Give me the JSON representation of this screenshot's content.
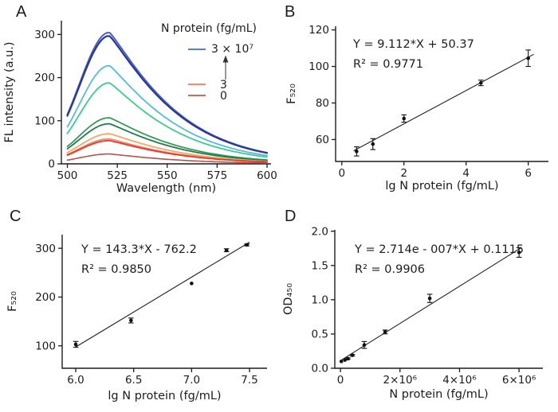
{
  "chart_data": [
    {
      "panel": "A",
      "type": "line",
      "subtype": "fluorescence-spectra",
      "xlabel": "Wavelength (nm)",
      "ylabel": "FL intensity (a.u.)",
      "xlim": [
        497,
        602
      ],
      "ylim": [
        0,
        332
      ],
      "xticks": [
        {
          "v": 500,
          "label": "500"
        },
        {
          "v": 525,
          "label": "525"
        },
        {
          "v": 550,
          "label": "550"
        },
        {
          "v": 575,
          "label": "575"
        },
        {
          "v": 600,
          "label": "600"
        }
      ],
      "yticks": [
        {
          "v": 0,
          "label": "0"
        },
        {
          "v": 100,
          "label": "100"
        },
        {
          "v": 200,
          "label": "200"
        },
        {
          "v": 300,
          "label": "300"
        }
      ],
      "peak_nm": 521,
      "curves": [
        {
          "peak": 305,
          "color": "#4a5fc1",
          "w": 2.0,
          "note": "3 × 10⁷ fg/mL"
        },
        {
          "peak": 297,
          "color": "#2b3a8c",
          "w": 2.2
        },
        {
          "peak": 228,
          "color": "#55bbd9",
          "w": 1.8
        },
        {
          "peak": 188,
          "color": "#41c98c",
          "w": 1.8
        },
        {
          "peak": 107,
          "color": "#379a58",
          "w": 1.8
        },
        {
          "peak": 93,
          "color": "#27794a",
          "w": 1.8
        },
        {
          "peak": 70,
          "color": "#f3a963",
          "w": 1.8
        },
        {
          "peak": 58,
          "color": "#ee8878",
          "w": 1.8
        },
        {
          "peak": 54,
          "color": "#e23a2a",
          "w": 1.8
        },
        {
          "peak": 23,
          "color": "#ad5450",
          "w": 1.6,
          "note": "0 fg/mL"
        }
      ],
      "legend": {
        "title": "N protein (fg/mL)",
        "entries": [
          {
            "label": "3 × 10⁷",
            "color": "#5b7fc4"
          },
          {
            "label": "3",
            "color": "#f0897a"
          },
          {
            "label": "0",
            "color": "#c96b6b"
          }
        ],
        "arrow": "up"
      }
    },
    {
      "panel": "B",
      "type": "scatter",
      "equation": "Y = 9.112*X + 50.37",
      "r_squared": "R² = 0.9771",
      "xlabel": "lg N protein (fg/mL)",
      "ylabel": "F₅₂₀",
      "xlim": [
        -0.2,
        6.65
      ],
      "ylim": [
        48,
        122
      ],
      "xticks": [
        {
          "v": 0,
          "label": "0"
        },
        {
          "v": 2,
          "label": "2"
        },
        {
          "v": 4,
          "label": "4"
        },
        {
          "v": 6,
          "label": "6"
        }
      ],
      "yticks": [
        {
          "v": 60,
          "label": "60"
        },
        {
          "v": 80,
          "label": "80"
        },
        {
          "v": 100,
          "label": "100"
        },
        {
          "v": 120,
          "label": "120"
        }
      ],
      "points": [
        {
          "x": 0.477,
          "y": 53.5,
          "err": 2.5
        },
        {
          "x": 1.0,
          "y": 57.5,
          "err": 3.0
        },
        {
          "x": 2.0,
          "y": 71.5,
          "err": 2.0
        },
        {
          "x": 4.477,
          "y": 91.0,
          "err": 1.5
        },
        {
          "x": 6.0,
          "y": 104.5,
          "err": 4.5
        }
      ],
      "fit": {
        "slope": 9.112,
        "intercept": 50.37,
        "x_from": 0.38,
        "x_to": 6.18
      }
    },
    {
      "panel": "C",
      "type": "scatter",
      "equation": "Y = 143.3*X - 762.2",
      "r_squared": "R² = 0.9850",
      "xlabel": "lg N protein (fg/mL)",
      "ylabel": "F₅₂₀",
      "xlim": [
        5.883,
        7.651
      ],
      "ylim": [
        54,
        328
      ],
      "xticks": [
        {
          "v": 6.0,
          "label": "6.0"
        },
        {
          "v": 6.5,
          "label": "6.5"
        },
        {
          "v": 7.0,
          "label": "7.0"
        },
        {
          "v": 7.5,
          "label": "7.5"
        }
      ],
      "yticks": [
        {
          "v": 100,
          "label": "100"
        },
        {
          "v": 200,
          "label": "200"
        },
        {
          "v": 300,
          "label": "300"
        }
      ],
      "points": [
        {
          "x": 6.0,
          "y": 103,
          "err": 6
        },
        {
          "x": 6.477,
          "y": 152,
          "err": 5
        },
        {
          "x": 7.0,
          "y": 228,
          "err": 0
        },
        {
          "x": 7.301,
          "y": 296,
          "err": 3
        },
        {
          "x": 7.477,
          "y": 307,
          "err": 2
        }
      ],
      "fit": {
        "slope": 143.3,
        "intercept": -762.2,
        "x_from": 6.0,
        "x_to": 7.5
      }
    },
    {
      "panel": "D",
      "type": "scatter",
      "equation": "Y = 2.714e - 007*X + 0.1115",
      "r_squared": "R² = 0.9906",
      "xlabel": "N protein (fg/mL)",
      "ylabel": "OD₄₅₀",
      "xlim": [
        -190000,
        6800000
      ],
      "ylim": [
        0,
        2.02
      ],
      "xticks": [
        {
          "v": 0,
          "label": "0"
        },
        {
          "v": 2000000,
          "label": "2×10⁶"
        },
        {
          "v": 4000000,
          "label": "4×10⁶"
        },
        {
          "v": 6000000,
          "label": "6×10⁶"
        }
      ],
      "yticks": [
        {
          "v": 0,
          "label": "0.0"
        },
        {
          "v": 0.5,
          "label": "0.5"
        },
        {
          "v": 1.0,
          "label": "1.0"
        },
        {
          "v": 1.5,
          "label": "1.5"
        },
        {
          "v": 2.0,
          "label": "2.0"
        }
      ],
      "points": [
        {
          "x": 30000,
          "y": 0.1,
          "err": 0
        },
        {
          "x": 150000,
          "y": 0.12,
          "err": 0
        },
        {
          "x": 250000,
          "y": 0.14,
          "err": 0.012
        },
        {
          "x": 400000,
          "y": 0.19,
          "err": 0.012
        },
        {
          "x": 800000,
          "y": 0.34,
          "err": 0.05
        },
        {
          "x": 1500000,
          "y": 0.53,
          "err": 0.028
        },
        {
          "x": 3000000,
          "y": 1.02,
          "err": 0.06
        },
        {
          "x": 6000000,
          "y": 1.69,
          "err": 0.07
        }
      ],
      "fit": {
        "slope": 2.714e-07,
        "intercept": 0.1115,
        "x_from": 20000,
        "x_to": 6080000
      }
    }
  ]
}
